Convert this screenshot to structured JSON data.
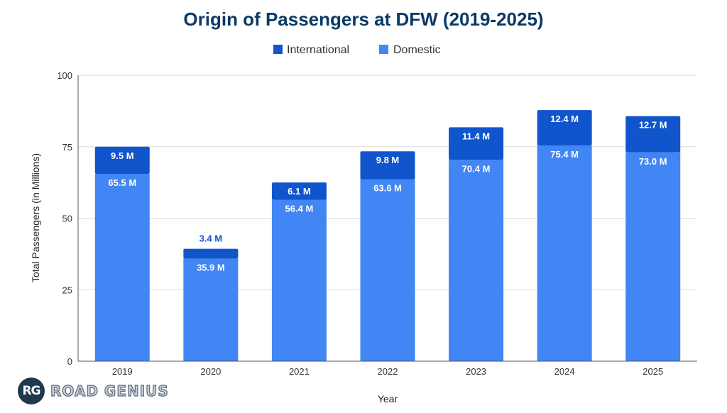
{
  "chart_data": {
    "type": "bar",
    "stacked": true,
    "title": "Origin of Passengers at DFW (2019-2025)",
    "xlabel": "Year",
    "ylabel": "Total Passengers (in Millions)",
    "ylim": [
      0,
      100
    ],
    "yticks": [
      0,
      25,
      50,
      75,
      100
    ],
    "grid": true,
    "legend_position": "top-center",
    "categories": [
      "2019",
      "2020",
      "2021",
      "2022",
      "2023",
      "2024",
      "2025"
    ],
    "series": [
      {
        "name": "Domestic",
        "color": "#4285f4",
        "values": [
          65.5,
          35.9,
          56.4,
          63.6,
          70.4,
          75.4,
          73.0
        ],
        "labels": [
          "65.5 M",
          "35.9 M",
          "56.4 M",
          "63.6 M",
          "70.4 M",
          "75.4 M",
          "73.0 M"
        ]
      },
      {
        "name": "International",
        "color": "#1155cc",
        "values": [
          9.5,
          3.4,
          6.1,
          9.8,
          11.4,
          12.4,
          12.7
        ],
        "labels": [
          "9.5 M",
          "3.4 M",
          "6.1 M",
          "9.8 M",
          "11.4 M",
          "12.4 M",
          "12.7 M"
        ]
      }
    ],
    "legend": [
      "International",
      "Domestic"
    ]
  },
  "branding": {
    "badge": "RG",
    "name": "ROAD GENIUS"
  },
  "colors": {
    "title": "#0b3a66",
    "international": "#1155cc",
    "domestic": "#4285f4"
  }
}
